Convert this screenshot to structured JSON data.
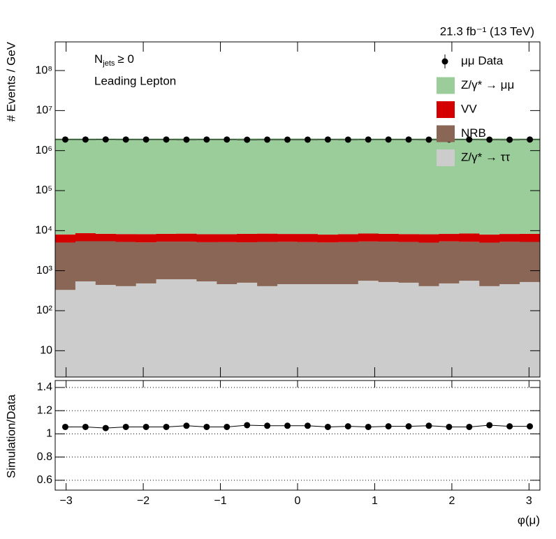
{
  "chart_data": [
    {
      "type": "histogram",
      "log_y": true,
      "stacked": true,
      "lumi": "21.3 fb⁻¹ (13 TeV)",
      "annotation_njets": {
        "symbol": "N",
        "sub": "jets",
        "rest": "≥ 0"
      },
      "annotation": "Leading Lepton",
      "ylabel": "# Events / GeV",
      "bins": [
        -3.1416,
        -2.8798,
        -2.618,
        -2.3562,
        -2.0944,
        -1.8326,
        -1.5708,
        -1.309,
        -1.0472,
        -0.7854,
        -0.5236,
        -0.2618,
        0,
        0.2618,
        0.5236,
        0.7854,
        1.0472,
        1.309,
        1.5708,
        1.8326,
        2.0944,
        2.3562,
        2.618,
        2.8798,
        3.1416
      ],
      "xlim": [
        -3.1416,
        3.1416
      ],
      "ylim": [
        2.2,
        520000000
      ],
      "yticks": [
        10,
        {
          "value": 100,
          "label": "10²"
        },
        {
          "value": 1000,
          "label": "10³"
        },
        {
          "value": 10000,
          "label": "10⁴"
        },
        {
          "value": 100000,
          "label": "10⁵"
        },
        {
          "value": 1000000,
          "label": "10⁶"
        },
        {
          "value": 10000000,
          "label": "10⁷"
        },
        {
          "value": 100000000,
          "label": "10⁸"
        }
      ],
      "series": [
        {
          "name": "μμ Data",
          "color": "#000000",
          "draw": "points",
          "values": [
            1890000,
            1890000,
            1900000,
            1890000,
            1890000,
            1890000,
            1880000,
            1890000,
            1890000,
            1870000,
            1880000,
            1880000,
            1880000,
            1890000,
            1880000,
            1890000,
            1890000,
            1890000,
            1880000,
            1890000,
            1890000,
            1880000,
            1870000,
            1890000
          ]
        },
        {
          "name": "Z/γ* → μμ",
          "color": "#9acd9a",
          "draw": "stack",
          "values": [
            2000000,
            2000000,
            2000000,
            2000000,
            2000000,
            2000000,
            2010000,
            2000000,
            2000000,
            2010000,
            2010000,
            2010000,
            2010000,
            2000000,
            2010000,
            2000000,
            2000000,
            2000000,
            2010000,
            2000000,
            2000000,
            2010000,
            2010000,
            2000000
          ]
        },
        {
          "name": "VV",
          "color": "#d40000",
          "draw": "stack",
          "values": [
            3000,
            3200,
            2900,
            3000,
            3100,
            3000,
            3100,
            3000,
            3000,
            3200,
            3200,
            3000,
            3100,
            2900,
            3000,
            3100,
            3000,
            3000,
            3100,
            2900,
            3200,
            3000,
            3000,
            3100
          ]
        },
        {
          "name": "NRB",
          "color": "#8a6656",
          "draw": "stack",
          "values": [
            4700,
            4900,
            5000,
            4800,
            4600,
            4700,
            4700,
            4600,
            4700,
            4600,
            4800,
            4800,
            4700,
            4600,
            4700,
            4800,
            4800,
            4700,
            4600,
            4900,
            4700,
            4600,
            4800,
            4700
          ]
        },
        {
          "name": "Z/γ* → ττ",
          "color": "#cccccc",
          "draw": "stack",
          "values": [
            330,
            540,
            440,
            410,
            480,
            610,
            610,
            540,
            460,
            500,
            410,
            460,
            460,
            460,
            460,
            560,
            520,
            500,
            410,
            480,
            560,
            410,
            460,
            520
          ]
        }
      ]
    },
    {
      "type": "scatter",
      "ylabel": "Simulation/Data",
      "xlabel": "φ(μ)",
      "grid": true,
      "color": "#000000",
      "xlim": [
        -3.1416,
        3.1416
      ],
      "ylim": [
        0.515,
        1.46
      ],
      "xticks": [
        {
          "value": -3,
          "label": "−3"
        },
        {
          "value": -2,
          "label": "−2"
        },
        {
          "value": -1,
          "label": "−1"
        },
        0,
        1,
        2,
        3
      ],
      "yticks": [
        0.6,
        0.8,
        1,
        1.2,
        1.4
      ],
      "x": [
        -3.0107,
        -2.7489,
        -2.4871,
        -2.2253,
        -1.9635,
        -1.7017,
        -1.4399,
        -1.1781,
        -0.9163,
        -0.6545,
        -0.3927,
        -0.1309,
        0.1309,
        0.3927,
        0.6545,
        0.9163,
        1.1781,
        1.4399,
        1.7017,
        1.9635,
        2.2253,
        2.4871,
        2.7489,
        3.0107
      ],
      "values": [
        1.06,
        1.06,
        1.05,
        1.06,
        1.06,
        1.06,
        1.07,
        1.06,
        1.06,
        1.075,
        1.07,
        1.07,
        1.07,
        1.06,
        1.065,
        1.06,
        1.065,
        1.065,
        1.07,
        1.06,
        1.06,
        1.075,
        1.065,
        1.065
      ]
    }
  ]
}
